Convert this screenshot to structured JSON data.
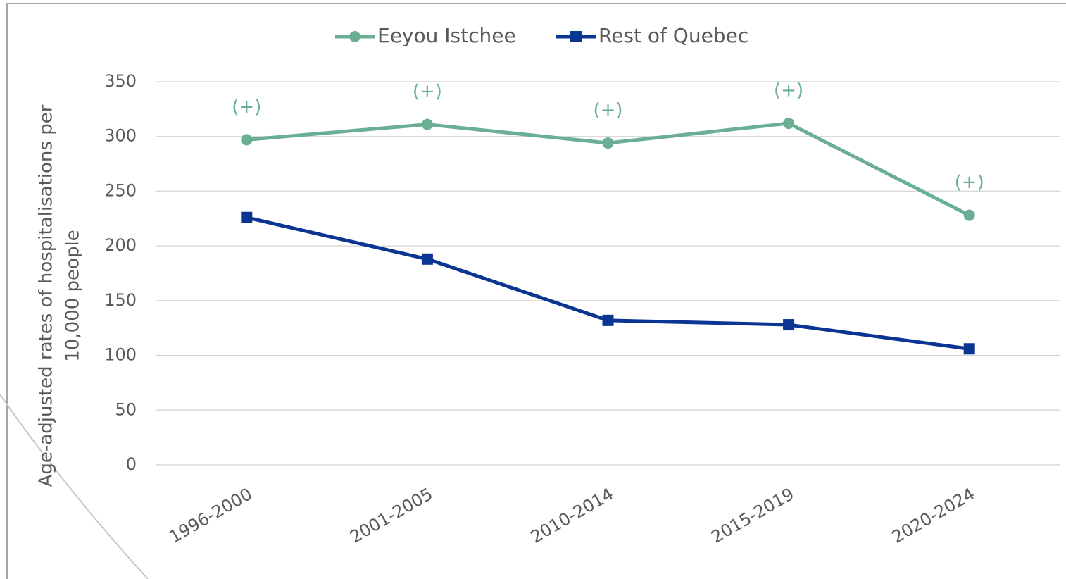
{
  "chart_data": {
    "type": "line",
    "y_label": [
      "Age-adjusted rates of hospitalisations per",
      "10,000 people"
    ],
    "categories": [
      "1996-2000",
      "2001-2005",
      "2010-2014",
      "2015-2019",
      "2020-2024"
    ],
    "series": [
      {
        "name": "Eeyou Istchee",
        "color": "#6aaf94",
        "marker": "circle",
        "values": [
          297,
          311,
          294,
          312,
          228
        ],
        "annotations": [
          "(+)",
          "(+)",
          "(+)",
          "(+)",
          "(+)"
        ]
      },
      {
        "name": "Rest of Quebec",
        "color": "#0a3592",
        "marker": "square",
        "values": [
          226,
          188,
          132,
          128,
          106
        ]
      }
    ],
    "ylim": [
      0,
      350
    ],
    "yticks": [
      0,
      50,
      100,
      150,
      200,
      250,
      300,
      350
    ],
    "grid": true,
    "legend": "top"
  }
}
